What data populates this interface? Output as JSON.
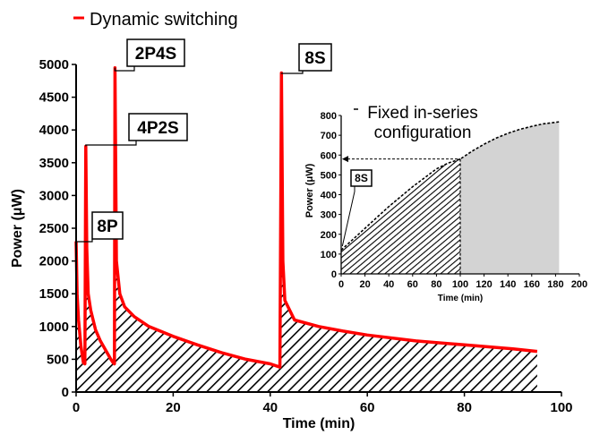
{
  "chart_data": [
    {
      "type": "line",
      "title": "",
      "xlabel": "Time (min)",
      "ylabel": "Power  (μW)",
      "xlim": [
        0,
        100
      ],
      "ylim": [
        0,
        5000
      ],
      "x_ticks": [
        "0",
        "20",
        "40",
        "60",
        "80",
        "100"
      ],
      "y_ticks": [
        "0",
        "500",
        "1000",
        "1500",
        "2000",
        "2500",
        "3000",
        "3500",
        "4000",
        "4500",
        "5000"
      ],
      "legend": {
        "position": "top-left",
        "entries": [
          "Dynamic switching"
        ]
      },
      "series": [
        {
          "name": "Dynamic switching",
          "color": "#ff0000",
          "fill": "hatched",
          "x": [
            0,
            0.2,
            0.5,
            1,
            1.5,
            1.8,
            2,
            2.2,
            2.5,
            3,
            4,
            5,
            6,
            7,
            7.6,
            7.9,
            8,
            8.3,
            9,
            10,
            12,
            15,
            20,
            25,
            30,
            35,
            40,
            42,
            42.3,
            42.6,
            43,
            45,
            50,
            55,
            60,
            70,
            80,
            90,
            95
          ],
          "y": [
            2300,
            1500,
            1100,
            700,
            450,
            430,
            3750,
            2200,
            1500,
            1250,
            950,
            780,
            650,
            520,
            450,
            430,
            4950,
            2000,
            1500,
            1300,
            1150,
            1000,
            850,
            720,
            600,
            500,
            430,
            380,
            4870,
            2000,
            1400,
            1100,
            1000,
            930,
            870,
            780,
            720,
            660,
            620
          ]
        }
      ],
      "annotations": [
        {
          "label": "8P",
          "x": 0,
          "y": 2300
        },
        {
          "label": "4P2S",
          "x": 2,
          "y": 3750
        },
        {
          "label": "2P4S",
          "x": 8,
          "y": 4950
        },
        {
          "label": "8S",
          "x": 42.3,
          "y": 4870
        }
      ]
    },
    {
      "type": "area",
      "title": "Fixed in-series configuration",
      "xlabel": "Time (min)",
      "ylabel": "Power  (μW)",
      "xlim": [
        0,
        200
      ],
      "ylim": [
        0,
        800
      ],
      "x_ticks": [
        "0",
        "20",
        "40",
        "60",
        "80",
        "100",
        "120",
        "140",
        "160",
        "180",
        "200"
      ],
      "y_ticks": [
        "0",
        "100",
        "200",
        "300",
        "400",
        "500",
        "600",
        "700",
        "800"
      ],
      "series": [
        {
          "color": "#000000",
          "x": [
            0,
            10,
            20,
            30,
            40,
            50,
            60,
            70,
            80,
            90,
            100,
            110,
            120,
            130,
            140,
            150,
            160,
            170,
            180,
            183
          ],
          "y": [
            120,
            175,
            230,
            285,
            340,
            390,
            440,
            485,
            530,
            560,
            580,
            620,
            655,
            685,
            710,
            730,
            745,
            758,
            765,
            768
          ],
          "hatched_until_x": 100
        }
      ],
      "reference": {
        "x": 100,
        "y": 580
      },
      "annotations": [
        {
          "label": "8S",
          "x": 1,
          "y": 140
        }
      ]
    }
  ]
}
